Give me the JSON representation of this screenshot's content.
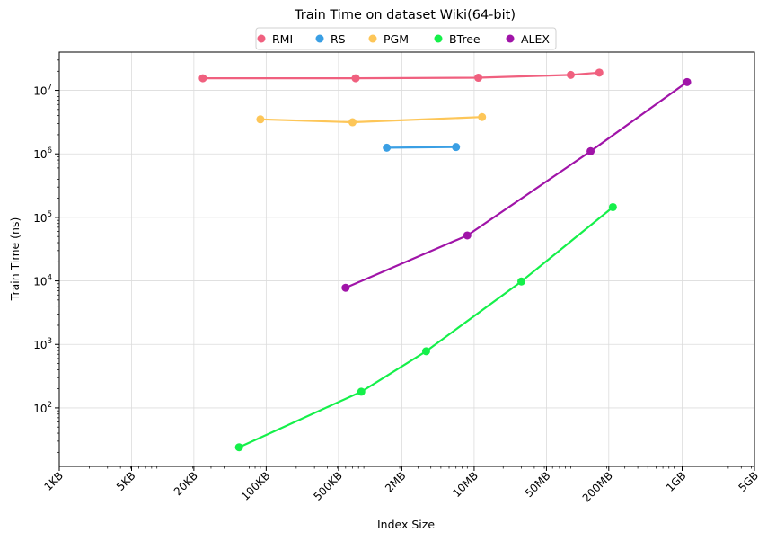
{
  "chart_data": {
    "type": "line",
    "title": "Train Time on dataset Wiki(64-bit)",
    "xlabel": "Index Size",
    "ylabel": "Train Time (ns)",
    "x_scale": "log",
    "y_scale": "log",
    "x_unit": "bytes",
    "xlim_bytes": [
      1024,
      5368709120
    ],
    "ylim": [
      12,
      40000000
    ],
    "grid": true,
    "legend_position": "top-center",
    "x_ticks": [
      {
        "label": "1KB",
        "bytes": 1024
      },
      {
        "label": "5KB",
        "bytes": 5120
      },
      {
        "label": "20KB",
        "bytes": 20480
      },
      {
        "label": "100KB",
        "bytes": 102400
      },
      {
        "label": "500KB",
        "bytes": 512000
      },
      {
        "label": "2MB",
        "bytes": 2097152
      },
      {
        "label": "10MB",
        "bytes": 10485760
      },
      {
        "label": "50MB",
        "bytes": 52428800
      },
      {
        "label": "200MB",
        "bytes": 209715200
      },
      {
        "label": "1GB",
        "bytes": 1073741824
      },
      {
        "label": "5GB",
        "bytes": 5368709120
      }
    ],
    "y_ticks": [
      {
        "base": "10",
        "exp": "2",
        "value": 100
      },
      {
        "base": "10",
        "exp": "3",
        "value": 1000
      },
      {
        "base": "10",
        "exp": "4",
        "value": 10000
      },
      {
        "base": "10",
        "exp": "5",
        "value": 100000
      },
      {
        "base": "10",
        "exp": "6",
        "value": 1000000
      },
      {
        "base": "10",
        "exp": "7",
        "value": 10000000
      }
    ],
    "series": [
      {
        "name": "RMI",
        "color": "#f0607f",
        "x": [
          25000,
          750000,
          11500000,
          90000000,
          170000000
        ],
        "y": [
          15500000,
          15500000,
          15800000,
          17500000,
          19000000
        ]
      },
      {
        "name": "RS",
        "color": "#3a9fe4",
        "x": [
          1500000,
          7000000
        ],
        "y": [
          1250000,
          1280000
        ]
      },
      {
        "name": "PGM",
        "color": "#fdc658",
        "x": [
          90000,
          700000,
          12500000
        ],
        "y": [
          3500000,
          3150000,
          3800000
        ]
      },
      {
        "name": "BTree",
        "color": "#15f04a",
        "x": [
          56000,
          850000,
          3600000,
          30000000,
          230000000
        ],
        "y": [
          24,
          180,
          780,
          9800,
          145000
        ]
      },
      {
        "name": "ALEX",
        "color": "#a014a8",
        "x": [
          600000,
          9000000,
          140000000,
          1200000000
        ],
        "y": [
          7800,
          52000,
          1100000,
          13500000
        ]
      }
    ]
  }
}
